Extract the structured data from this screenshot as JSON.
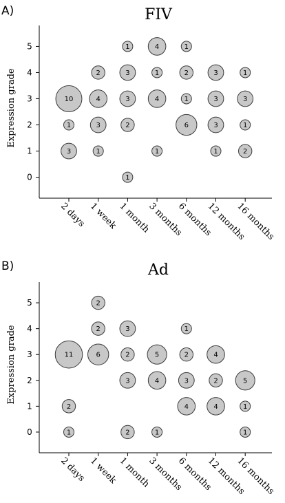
{
  "chart_data": [
    {
      "type": "scatter",
      "panel_label": "A)",
      "title": "FIV",
      "ylabel": "Expression grade",
      "xlabel": "",
      "categories": [
        "2 days",
        "1 week",
        "1 month",
        "3 months",
        "6 months",
        "12 months",
        "16 months"
      ],
      "y_ticks": [
        0,
        1,
        2,
        3,
        4,
        5
      ],
      "ylim": [
        -0.8,
        5.8
      ],
      "grid": false,
      "points": [
        {
          "x": "2 days",
          "y": 3,
          "count": 10
        },
        {
          "x": "2 days",
          "y": 2,
          "count": 1
        },
        {
          "x": "2 days",
          "y": 1,
          "count": 3
        },
        {
          "x": "1 week",
          "y": 4,
          "count": 2
        },
        {
          "x": "1 week",
          "y": 3,
          "count": 4
        },
        {
          "x": "1 week",
          "y": 2,
          "count": 3
        },
        {
          "x": "1 week",
          "y": 1,
          "count": 1
        },
        {
          "x": "1 month",
          "y": 5,
          "count": 1
        },
        {
          "x": "1 month",
          "y": 4,
          "count": 3
        },
        {
          "x": "1 month",
          "y": 3,
          "count": 3
        },
        {
          "x": "1 month",
          "y": 2,
          "count": 2
        },
        {
          "x": "1 month",
          "y": 0,
          "count": 1
        },
        {
          "x": "3 months",
          "y": 5,
          "count": 4
        },
        {
          "x": "3 months",
          "y": 4,
          "count": 1
        },
        {
          "x": "3 months",
          "y": 3,
          "count": 4
        },
        {
          "x": "3 months",
          "y": 1,
          "count": 1
        },
        {
          "x": "6 months",
          "y": 5,
          "count": 1
        },
        {
          "x": "6 months",
          "y": 4,
          "count": 2
        },
        {
          "x": "6 months",
          "y": 3,
          "count": 1
        },
        {
          "x": "6 months",
          "y": 2,
          "count": 6
        },
        {
          "x": "12 months",
          "y": 4,
          "count": 3
        },
        {
          "x": "12 months",
          "y": 3,
          "count": 3
        },
        {
          "x": "12 months",
          "y": 2,
          "count": 3
        },
        {
          "x": "12 months",
          "y": 1,
          "count": 1
        },
        {
          "x": "16 months",
          "y": 4,
          "count": 1
        },
        {
          "x": "16 months",
          "y": 3,
          "count": 3
        },
        {
          "x": "16 months",
          "y": 2,
          "count": 1
        },
        {
          "x": "16 months",
          "y": 1,
          "count": 2
        }
      ]
    },
    {
      "type": "scatter",
      "panel_label": "B)",
      "title": "Ad",
      "ylabel": "Expression grade",
      "xlabel": "",
      "categories": [
        "2 days",
        "1 week",
        "1 month",
        "3 months",
        "6 months",
        "12 months",
        "16 months"
      ],
      "y_ticks": [
        0,
        1,
        2,
        3,
        4,
        5
      ],
      "ylim": [
        -0.8,
        5.8
      ],
      "grid": false,
      "points": [
        {
          "x": "2 days",
          "y": 3,
          "count": 11
        },
        {
          "x": "2 days",
          "y": 1,
          "count": 2
        },
        {
          "x": "2 days",
          "y": 0,
          "count": 1
        },
        {
          "x": "1 week",
          "y": 5,
          "count": 2
        },
        {
          "x": "1 week",
          "y": 4,
          "count": 2
        },
        {
          "x": "1 week",
          "y": 3,
          "count": 6
        },
        {
          "x": "1 month",
          "y": 4,
          "count": 3
        },
        {
          "x": "1 month",
          "y": 3,
          "count": 2
        },
        {
          "x": "1 month",
          "y": 2,
          "count": 3
        },
        {
          "x": "1 month",
          "y": 0,
          "count": 2
        },
        {
          "x": "3 months",
          "y": 3,
          "count": 5
        },
        {
          "x": "3 months",
          "y": 2,
          "count": 4
        },
        {
          "x": "3 months",
          "y": 0,
          "count": 1
        },
        {
          "x": "6 months",
          "y": 4,
          "count": 1
        },
        {
          "x": "6 months",
          "y": 3,
          "count": 2
        },
        {
          "x": "6 months",
          "y": 2,
          "count": 3
        },
        {
          "x": "6 months",
          "y": 1,
          "count": 4
        },
        {
          "x": "12 months",
          "y": 3,
          "count": 4
        },
        {
          "x": "12 months",
          "y": 2,
          "count": 2
        },
        {
          "x": "12 months",
          "y": 1,
          "count": 4
        },
        {
          "x": "16 months",
          "y": 2,
          "count": 5
        },
        {
          "x": "16 months",
          "y": 1,
          "count": 1
        },
        {
          "x": "16 months",
          "y": 0,
          "count": 1
        }
      ]
    }
  ]
}
